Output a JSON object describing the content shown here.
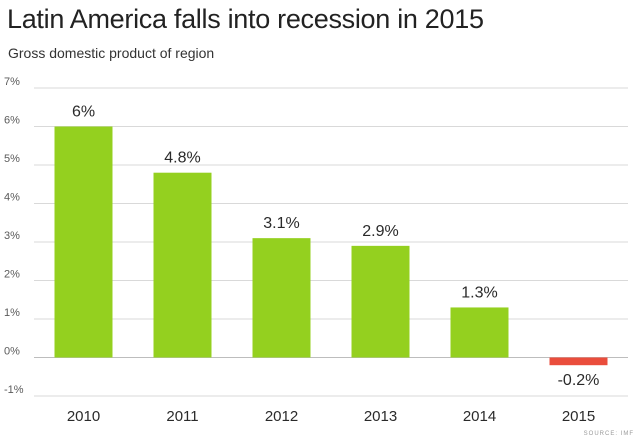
{
  "header": {
    "title": "Latin America falls into recession in 2015",
    "subtitle": "Gross domestic product of region"
  },
  "footer": {
    "source": "SOURCE: IMF"
  },
  "colors": {
    "positive": "#94d01f",
    "negative": "#ea4d3c",
    "grid": "#d9d9d9",
    "zero_line": "#bdbdbd"
  },
  "chart_data": {
    "type": "bar",
    "title": "Latin America falls into recession in 2015",
    "subtitle": "Gross domestic product of region",
    "categories": [
      "2010",
      "2011",
      "2012",
      "2013",
      "2014",
      "2015"
    ],
    "values": [
      6,
      4.8,
      3.1,
      2.9,
      1.3,
      -0.2
    ],
    "data_labels": [
      "6%",
      "4.8%",
      "3.1%",
      "2.9%",
      "1.3%",
      "-0.2%"
    ],
    "y_ticks": [
      -1,
      0,
      1,
      2,
      3,
      4,
      5,
      6,
      7
    ],
    "y_tick_labels": [
      "-1%",
      "0%",
      "1%",
      "2%",
      "3%",
      "4%",
      "5%",
      "6%",
      "7%"
    ],
    "xlabel": "",
    "ylabel": "",
    "ylim": [
      -1,
      7
    ],
    "grid": true,
    "legend": "none"
  }
}
